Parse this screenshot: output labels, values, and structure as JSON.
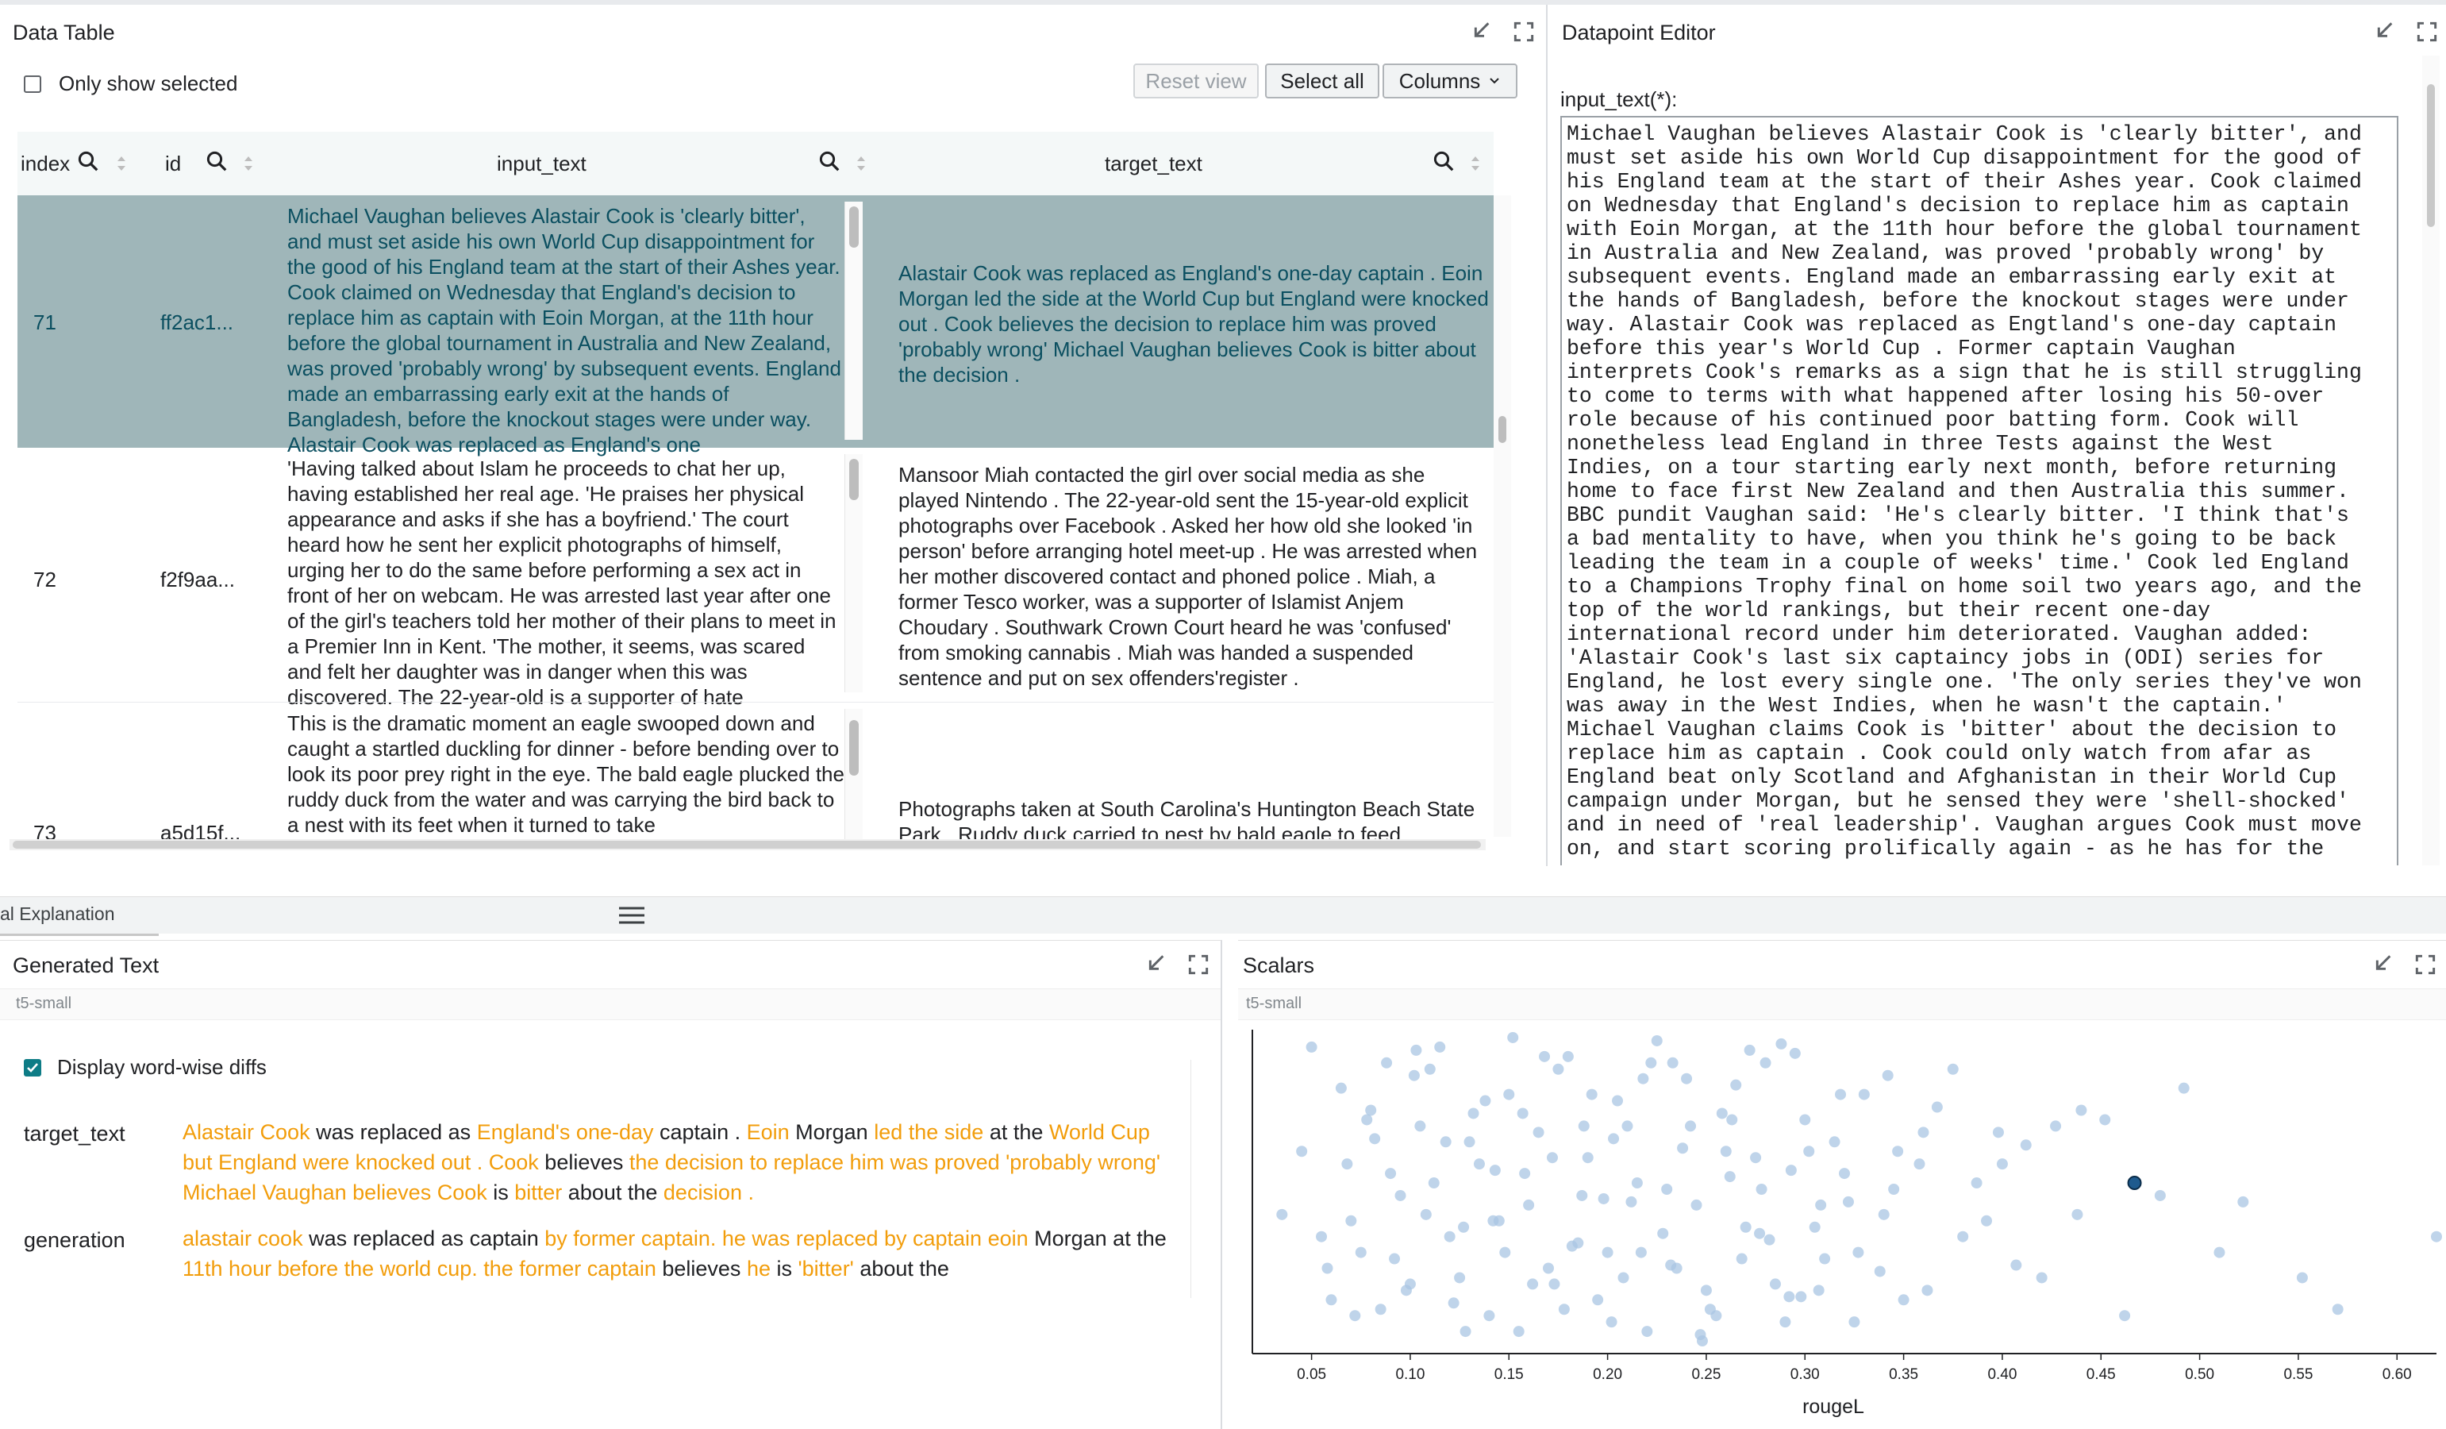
{
  "data_table": {
    "title": "Data Table",
    "only_show_selected": "Only show selected",
    "reset_view": "Reset view",
    "select_all": "Select all",
    "columns": "Columns",
    "headers": [
      "index",
      "id",
      "input_text",
      "target_text"
    ],
    "rows": [
      {
        "index": "71",
        "id": "ff2ac1...",
        "input_text": "Michael Vaughan believes Alastair Cook is 'clearly bitter', and must set aside his own World Cup disappointment for the good of his England team at the start of their Ashes year. Cook claimed on Wednesday that England's decision to replace him as captain with Eoin Morgan, at the 11th hour before the global tournament in Australia and New Zealand, was proved 'probably wrong' by subsequent events. England made an embarrassing early exit at the hands of Bangladesh, before the knockout stages were under way. Alastair Cook was replaced as England's one",
        "target_text": "Alastair Cook was replaced as England's one-day captain . Eoin Morgan led the side at the World Cup but England were knocked out . Cook believes the decision to replace him was proved 'probably wrong' Michael Vaughan believes Cook is bitter about the decision ."
      },
      {
        "index": "72",
        "id": "f2f9aa...",
        "input_text": "'Having talked about Islam he proceeds to chat her up, having established her real age. 'He praises her physical appearance and asks if she has a boyfriend.' The court heard how he sent her explicit photographs of himself, urging her to do the same before performing a sex act in front of her on webcam. He was arrested last year after one of the girl's teachers told her mother of their plans to meet in a Premier Inn in Kent. 'The mother, it seems, was scared and felt her daughter was in danger when this was discovered. The 22-year-old is a supporter of hate",
        "target_text": "Mansoor Miah contacted the girl over social media as she played Nintendo . The 22-year-old sent the 15-year-old explicit photographs over Facebook . Asked her how old she looked 'in person' before arranging hotel meet-up . He was arrested when her mother discovered contact and phoned police . Miah, a former Tesco worker, was a supporter of Islamist  Anjem Choudary . Southwark Crown Court heard he was 'confused' from smoking cannabis . Miah was handed a suspended sentence and put on sex offenders'register ."
      },
      {
        "index": "73",
        "id": "a5d15f...",
        "input_text": "This is the dramatic moment an eagle swooped down and caught a startled duckling for dinner - before bending over to look its poor prey right in the eye. The bald eagle plucked the ruddy duck from the water and was carrying the bird back to a nest with its feet when it turned to take",
        "target_text": "Photographs taken at South Carolina's Huntington Beach State Park . Ruddy duck carried to nest by bald eagle to feed"
      }
    ]
  },
  "datapoint_editor": {
    "title": "Datapoint Editor",
    "field_label": "input_text(*):",
    "lines": [
      "Michael Vaughan believes Alastair Cook is 'clearly bitter', and",
      "must set aside his own World Cup disappointment for the good of",
      "his England team at the start of their Ashes year. Cook claimed",
      "on Wednesday that England's decision to replace him as captain",
      "with Eoin Morgan, at the 11th hour before the global tournament",
      "in Australia and New Zealand, was proved 'probably wrong' by",
      "subsequent events. England made an embarrassing early exit at",
      "the hands of Bangladesh, before the knockout stages were under",
      "way. Alastair Cook was replaced as Engtland's one-day captain",
      "before this year's World Cup . Former captain Vaughan",
      "interprets Cook's remarks as a sign that he is still struggling",
      "to come to terms with what happened after losing his 50-over",
      "role because of his continued poor batting form. Cook will",
      "nonetheless lead England in three Tests against the West",
      "Indies, on a tour starting early next month, before returning",
      "home to face first New Zealand and then Australia this summer.",
      "BBC pundit Vaughan said: 'He's clearly bitter. 'I think that's",
      "a bad mentality to have, when you think he's going to be back",
      "leading the team in a couple of weeks' time.' Cook led England",
      "to a Champions Trophy final on home soil two years ago, and the",
      "top of the world rankings, but their recent one-day",
      "international record under him deteriorated. Vaughan added:",
      "'Alastair Cook's last six captaincy jobs in (ODI) series for",
      "England, he lost every single one. 'The only series they've won",
      "was away in the West Indies, when he wasn't the captain.'",
      "Michael Vaughan claims Cook is 'bitter' about the decision to",
      "replace him as captain . Cook could only watch from afar as",
      "England beat only Scotland and Afghanistan in their World Cup",
      "campaign under Morgan, but he sensed they were 'shell-shocked'",
      "and in need of 'real leadership'. Vaughan argues Cook must move",
      "on, and start scoring prolifically again - as he has for the"
    ]
  },
  "bottom_tab": "al Explanation",
  "generated_text": {
    "title": "Generated Text",
    "model": "t5-small",
    "display_diffs": "Display word-wise diffs",
    "target_label": "target_text",
    "generation_label": "generation",
    "target_segments": [
      {
        "t": "Alastair Cook",
        "h": true
      },
      {
        "t": " was replaced as ",
        "h": false
      },
      {
        "t": "England's one-day",
        "h": true
      },
      {
        "t": " captain . ",
        "h": false
      },
      {
        "t": "Eoin",
        "h": true
      },
      {
        "t": " Morgan ",
        "h": false
      },
      {
        "t": "led the side",
        "h": true
      },
      {
        "t": " at the ",
        "h": false
      },
      {
        "t": "World Cup but England were knocked out . Cook",
        "h": true
      },
      {
        "t": " believes ",
        "h": false
      },
      {
        "t": "the decision to replace him was proved 'probably wrong' Michael Vaughan believes Cook",
        "h": true
      },
      {
        "t": " is ",
        "h": false
      },
      {
        "t": "bitter",
        "h": true
      },
      {
        "t": " about the ",
        "h": false
      },
      {
        "t": "decision .",
        "h": true
      }
    ],
    "generation_segments": [
      {
        "t": "alastair cook",
        "h": true
      },
      {
        "t": " was replaced as captain ",
        "h": false
      },
      {
        "t": "by former captain. he was replaced by captain eoin",
        "h": true
      },
      {
        "t": " Morgan at the ",
        "h": false
      },
      {
        "t": "11th hour before the world cup. the former captain",
        "h": true
      },
      {
        "t": " believes ",
        "h": false
      },
      {
        "t": "he",
        "h": true
      },
      {
        "t": " is ",
        "h": false
      },
      {
        "t": "'bitter'",
        "h": true
      },
      {
        "t": " about the",
        "h": false
      }
    ]
  },
  "scalars": {
    "title": "Scalars",
    "model": "t5-small",
    "colors": {
      "point": "#a9c6e3",
      "selected": "#1f5b8e"
    }
  },
  "chart_data": {
    "type": "scatter",
    "title": "",
    "xlabel": "rougeL",
    "ylabel": "",
    "xlim": [
      0.02,
      0.62
    ],
    "x_ticks": [
      "0.05",
      "0.10",
      "0.15",
      "0.20",
      "0.25",
      "0.30",
      "0.35",
      "0.40",
      "0.45",
      "0.50",
      "0.55",
      "0.60"
    ],
    "selected_point": {
      "x": 0.467
    },
    "x": [
      0.05,
      0.06,
      0.07,
      0.08,
      0.09,
      0.1,
      0.11,
      0.12,
      0.13,
      0.14,
      0.15,
      0.16,
      0.17,
      0.18,
      0.19,
      0.2,
      0.21,
      0.22,
      0.23,
      0.24,
      0.25,
      0.26,
      0.27,
      0.28,
      0.29,
      0.3,
      0.31,
      0.32,
      0.33,
      0.34,
      0.35,
      0.36,
      0.38,
      0.4,
      0.42,
      0.44,
      0.48,
      0.51,
      0.57,
      0.62,
      0.045,
      0.065,
      0.075,
      0.085,
      0.095,
      0.105,
      0.115,
      0.125,
      0.135,
      0.145,
      0.155,
      0.165,
      0.175,
      0.185,
      0.195,
      0.205,
      0.215,
      0.225,
      0.235,
      0.245,
      0.255,
      0.265,
      0.275,
      0.285,
      0.295,
      0.305,
      0.315,
      0.325,
      0.345,
      0.375,
      0.055,
      0.068,
      0.088,
      0.098,
      0.108,
      0.118,
      0.128,
      0.138,
      0.148,
      0.158,
      0.168,
      0.178,
      0.188,
      0.198,
      0.208,
      0.218,
      0.228,
      0.238,
      0.248,
      0.258,
      0.268,
      0.278,
      0.288,
      0.298,
      0.308,
      0.318,
      0.338,
      0.358,
      0.398,
      0.438,
      0.072,
      0.082,
      0.092,
      0.102,
      0.112,
      0.122,
      0.132,
      0.142,
      0.152,
      0.162,
      0.172,
      0.182,
      0.192,
      0.202,
      0.212,
      0.222,
      0.232,
      0.242,
      0.252,
      0.262,
      0.272,
      0.282,
      0.292,
      0.302,
      0.322,
      0.342,
      0.362,
      0.392,
      0.412,
      0.452,
      0.035,
      0.058,
      0.078,
      0.103,
      0.127,
      0.143,
      0.157,
      0.173,
      0.187,
      0.203,
      0.217,
      0.233,
      0.247,
      0.263,
      0.277,
      0.293,
      0.307,
      0.327,
      0.347,
      0.367,
      0.387,
      0.407,
      0.427,
      0.462,
      0.492,
      0.522,
      0.552
    ],
    "y": [
      0.95,
      0.15,
      0.4,
      0.75,
      0.55,
      0.2,
      0.88,
      0.35,
      0.65,
      0.1,
      0.8,
      0.45,
      0.25,
      0.92,
      0.6,
      0.3,
      0.7,
      0.05,
      0.5,
      0.85,
      0.18,
      0.62,
      0.38,
      0.9,
      0.08,
      0.72,
      0.28,
      0.55,
      0.8,
      0.42,
      0.15,
      0.68,
      0.35,
      0.58,
      0.22,
      0.75,
      0.48,
      0.3,
      0.12,
      0.35,
      0.62,
      0.82,
      0.3,
      0.12,
      0.48,
      0.7,
      0.95,
      0.22,
      0.58,
      0.4,
      0.05,
      0.68,
      0.88,
      0.33,
      0.15,
      0.78,
      0.52,
      0.97,
      0.25,
      0.45,
      0.1,
      0.83,
      0.6,
      0.2,
      0.93,
      0.38,
      0.65,
      0.08,
      0.5,
      0.88,
      0.35,
      0.58,
      0.9,
      0.18,
      0.42,
      0.65,
      0.05,
      0.78,
      0.3,
      0.55,
      0.92,
      0.12,
      0.7,
      0.47,
      0.22,
      0.85,
      0.36,
      0.63,
      0.02,
      0.74,
      0.28,
      0.5,
      0.96,
      0.16,
      0.45,
      0.8,
      0.24,
      0.58,
      0.68,
      0.42,
      0.1,
      0.66,
      0.28,
      0.86,
      0.52,
      0.14,
      0.74,
      0.4,
      0.98,
      0.2,
      0.6,
      0.32,
      0.8,
      0.08,
      0.46,
      0.9,
      0.26,
      0.7,
      0.12,
      0.54,
      0.94,
      0.34,
      0.16,
      0.62,
      0.46,
      0.86,
      0.18,
      0.4,
      0.64,
      0.72,
      0.42,
      0.25,
      0.72,
      0.94,
      0.38,
      0.56,
      0.74,
      0.2,
      0.48,
      0.66,
      0.3,
      0.9,
      0.04,
      0.72,
      0.36,
      0.56,
      0.18,
      0.3,
      0.62,
      0.76,
      0.52,
      0.26,
      0.7,
      0.1,
      0.82,
      0.46,
      0.22
    ]
  }
}
